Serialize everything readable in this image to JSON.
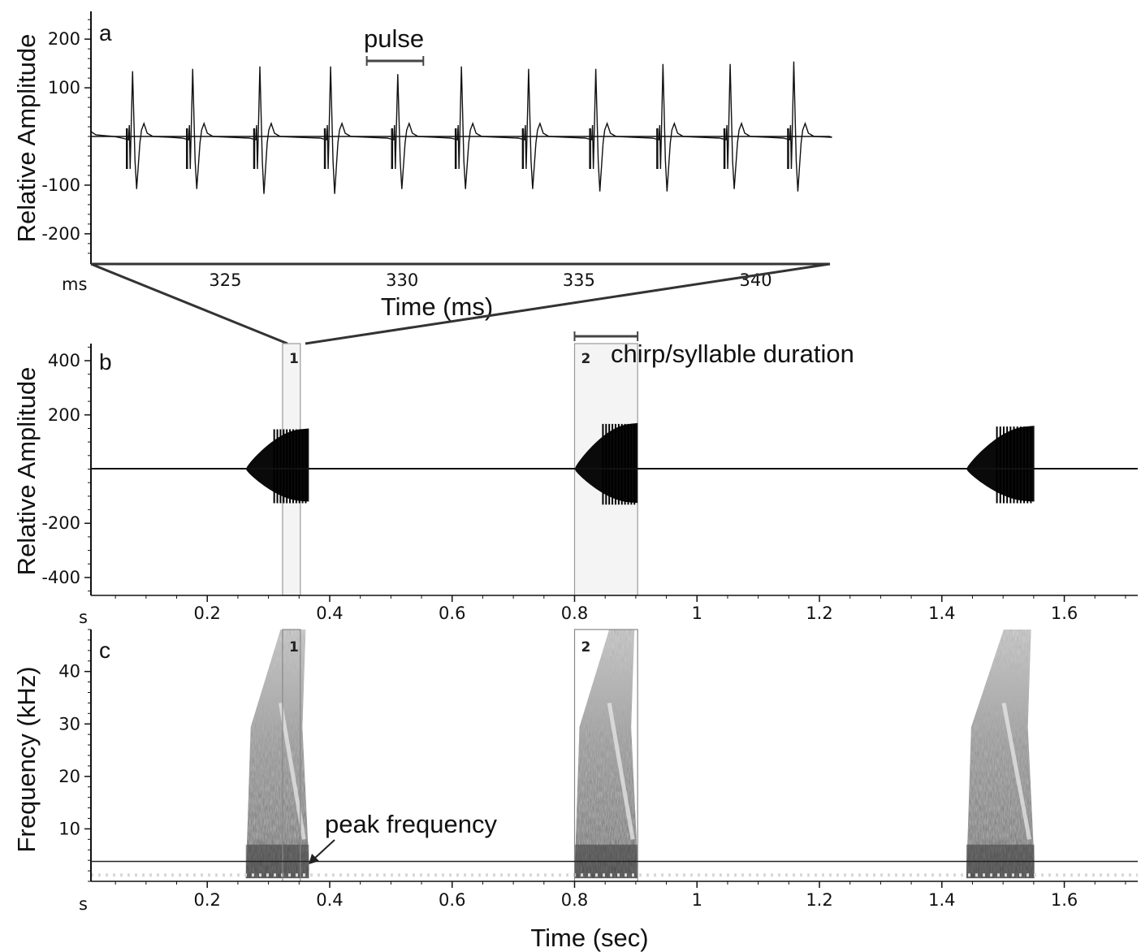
{
  "chart_data": [
    {
      "panel": "a",
      "type": "line",
      "ylabel": "Relative Amplitude",
      "xlabel": "Time (ms)",
      "x_unit": "ms",
      "xlim": [
        321.2,
        342.1
      ],
      "ylim": [
        -262,
        262
      ],
      "xticks": [
        325,
        330,
        335,
        340
      ],
      "yticks": [
        200,
        100,
        -100,
        -200
      ],
      "annotation": "pulse",
      "annotation_span_ms": [
        329.0,
        330.6
      ],
      "pulses": [
        {
          "t": 322.4,
          "max": 134,
          "min": -108
        },
        {
          "t": 324.1,
          "max": 139,
          "min": -108
        },
        {
          "t": 326.0,
          "max": 144,
          "min": -118
        },
        {
          "t": 328.0,
          "max": 144,
          "min": -118
        },
        {
          "t": 329.9,
          "max": 128,
          "min": -108
        },
        {
          "t": 331.7,
          "max": 144,
          "min": -108
        },
        {
          "t": 333.6,
          "max": 139,
          "min": -108
        },
        {
          "t": 335.5,
          "max": 139,
          "min": -113
        },
        {
          "t": 337.4,
          "max": 149,
          "min": -113
        },
        {
          "t": 339.3,
          "max": 149,
          "min": -108
        },
        {
          "t": 341.1,
          "max": 154,
          "min": -113
        }
      ]
    },
    {
      "panel": "b",
      "type": "line",
      "ylabel": "Relative Amplitude",
      "x_unit": "s",
      "xlim": [
        0.01,
        1.72
      ],
      "ylim": [
        -520,
        520
      ],
      "xticks": [
        0.2,
        0.4,
        0.6,
        0.8,
        1,
        1.2,
        1.4,
        1.6
      ],
      "yticks": [
        400,
        200,
        -200,
        -400
      ],
      "annotation": "chirp/syllable duration",
      "chirps": [
        {
          "start": 0.263,
          "end": 0.366,
          "peak": 150,
          "trough": -120
        },
        {
          "start": 0.8,
          "end": 0.903,
          "peak": 170,
          "trough": -125
        },
        {
          "start": 1.44,
          "end": 1.551,
          "peak": 160,
          "trough": -120
        }
      ],
      "marked_regions": [
        {
          "label": "1",
          "start": 0.323,
          "end": 0.352
        },
        {
          "label": "2",
          "start": 0.8,
          "end": 0.903
        }
      ]
    },
    {
      "panel": "c",
      "type": "heatmap",
      "ylabel": "Frequency (kHz)",
      "xlabel": "Time (sec)",
      "x_unit": "s",
      "xlim": [
        0.01,
        1.72
      ],
      "ylim": [
        0,
        48
      ],
      "xticks": [
        0.2,
        0.4,
        0.6,
        0.8,
        1,
        1.2,
        1.4,
        1.6
      ],
      "yticks": [
        40,
        30,
        20,
        10
      ],
      "annotation": "peak frequency",
      "peak_frequency_khz": 3.8,
      "marked_regions": [
        {
          "label": "1",
          "start": 0.323,
          "end": 0.352
        },
        {
          "label": "2",
          "start": 0.8,
          "end": 0.903
        }
      ]
    }
  ]
}
